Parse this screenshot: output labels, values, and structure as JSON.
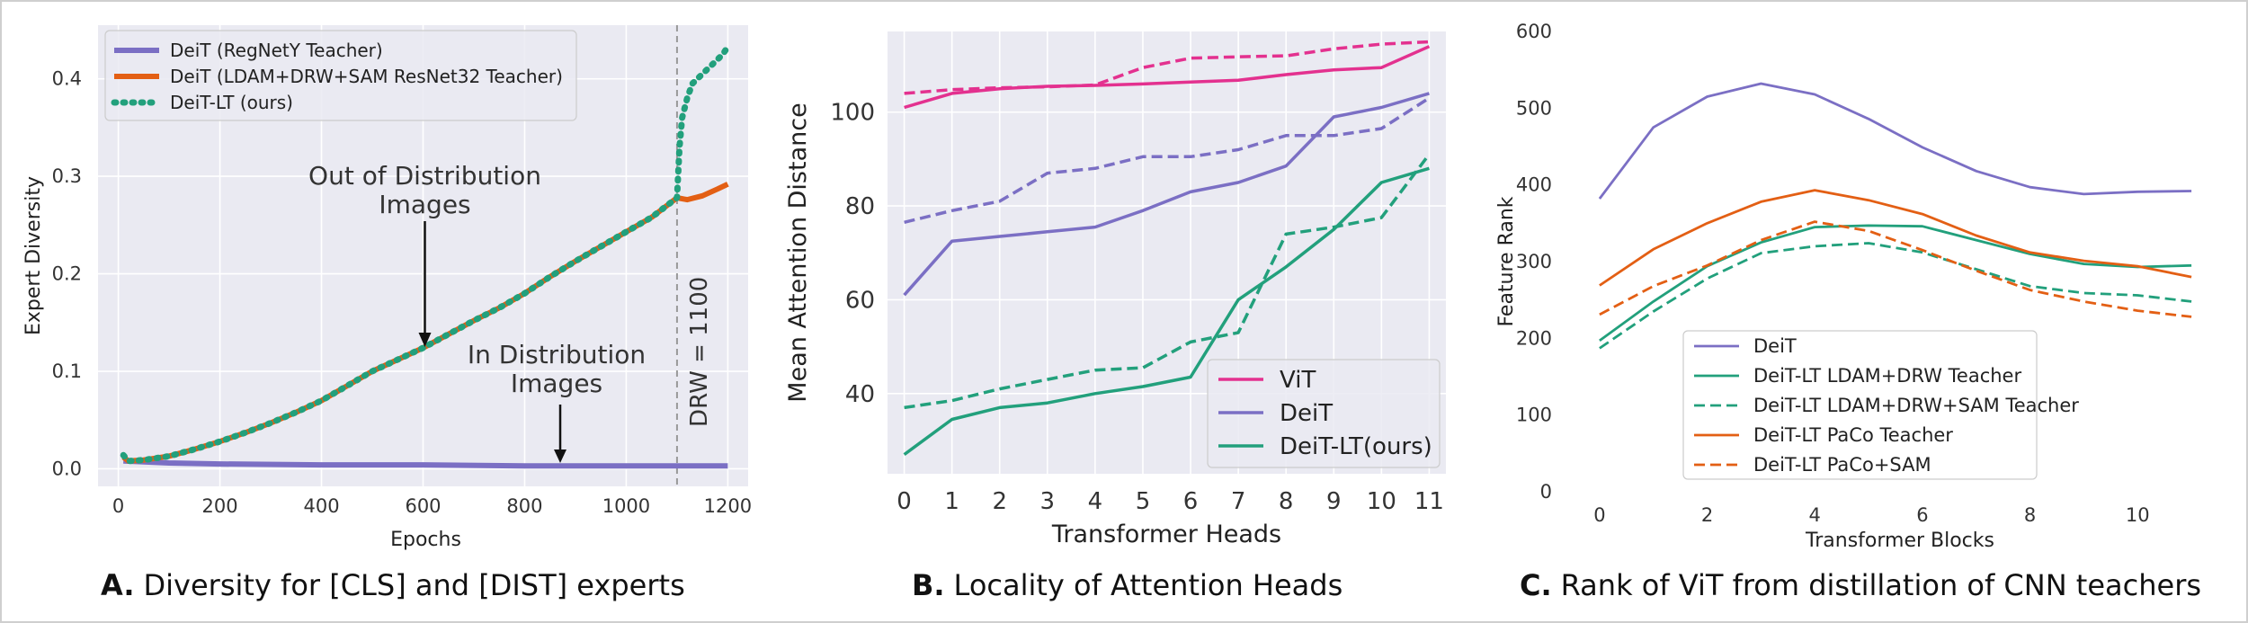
{
  "colors": {
    "purple": "#7b6fc4",
    "orange": "#e35f14",
    "teal": "#22a07c",
    "pink": "#e3318f",
    "grid": "#ffffff",
    "plot_bg": "#eaeaf2",
    "annot": "#333333"
  },
  "captions": [
    {
      "letter": "A.",
      "text": "Diversity for [CLS] and [DIST] experts"
    },
    {
      "letter": "B.",
      "text": "Locality of Attention Heads"
    },
    {
      "letter": "C.",
      "text": "Rank of ViT from distillation of CNN teachers"
    }
  ],
  "chart_data": [
    {
      "type": "line",
      "xlabel": "Epochs",
      "ylabel": "Expert Diversity",
      "xlim": [
        -40,
        1240
      ],
      "ylim": [
        -0.018,
        0.455
      ],
      "xticks": [
        0,
        200,
        400,
        600,
        800,
        1000,
        1200
      ],
      "yticks": [
        0.0,
        0.1,
        0.2,
        0.3,
        0.4
      ],
      "ytick_labels": [
        "0.0",
        "0.1",
        "0.2",
        "0.3",
        "0.4"
      ],
      "grid": true,
      "legend": "top-left",
      "series": [
        {
          "name": "DeiT (RegNetY Teacher)",
          "color": "purple",
          "dash": "solid",
          "width": 6,
          "x": [
            10,
            100,
            200,
            400,
            600,
            800,
            1000,
            1200
          ],
          "y": [
            0.008,
            0.006,
            0.005,
            0.004,
            0.004,
            0.003,
            0.003,
            0.003
          ]
        },
        {
          "name": "DeiT (LDAM+DRW+SAM ResNet32 Teacher)",
          "color": "orange",
          "dash": "solid",
          "width": 6,
          "x": [
            10,
            20,
            50,
            100,
            150,
            200,
            250,
            300,
            350,
            400,
            450,
            500,
            550,
            600,
            650,
            700,
            750,
            800,
            850,
            900,
            950,
            1000,
            1050,
            1100,
            1120,
            1150,
            1180,
            1200
          ],
          "y": [
            0.012,
            0.008,
            0.009,
            0.013,
            0.02,
            0.028,
            0.037,
            0.047,
            0.058,
            0.07,
            0.085,
            0.1,
            0.112,
            0.124,
            0.138,
            0.152,
            0.165,
            0.18,
            0.197,
            0.213,
            0.228,
            0.243,
            0.258,
            0.278,
            0.276,
            0.28,
            0.287,
            0.292
          ]
        },
        {
          "name": "DeiT-LT (ours)",
          "color": "teal",
          "dash": "dot",
          "width": 7,
          "x": [
            10,
            20,
            50,
            100,
            150,
            200,
            250,
            300,
            350,
            400,
            450,
            500,
            550,
            600,
            650,
            700,
            750,
            800,
            850,
            900,
            950,
            1000,
            1050,
            1100,
            1105,
            1110,
            1120,
            1130,
            1150,
            1170,
            1190,
            1200
          ],
          "y": [
            0.014,
            0.008,
            0.009,
            0.013,
            0.02,
            0.028,
            0.037,
            0.047,
            0.058,
            0.07,
            0.085,
            0.1,
            0.112,
            0.124,
            0.138,
            0.152,
            0.165,
            0.18,
            0.197,
            0.213,
            0.228,
            0.243,
            0.258,
            0.278,
            0.33,
            0.36,
            0.38,
            0.395,
            0.405,
            0.415,
            0.425,
            0.433
          ]
        }
      ],
      "annotations": [
        {
          "text": "Out of Distribution\nImages",
          "x": 600,
          "y": 0.12
        },
        {
          "text": "In Distribution\nImages",
          "x": 870,
          "y": 0.004
        }
      ],
      "vline": {
        "x": 1100,
        "label": "DRW = 1100"
      }
    },
    {
      "type": "line",
      "xlabel": "Transformer Heads",
      "ylabel": "Mean Attention Distance",
      "categories": [
        "0",
        "1",
        "2",
        "3",
        "4",
        "5",
        "6",
        "7",
        "8",
        "9",
        "10",
        "11"
      ],
      "xlim": [
        -0.35,
        11.35
      ],
      "ylim": [
        22.9,
        117.2
      ],
      "yticks": [
        40,
        60,
        80,
        100
      ],
      "grid": true,
      "legend": "bottom-right",
      "series": [
        {
          "name": "ViT",
          "color": "pink",
          "dash": "solid",
          "width": 3.5,
          "legend": true,
          "values": [
            101,
            104,
            105,
            105.5,
            105.7,
            106,
            106.4,
            106.8,
            108,
            109,
            109.5,
            114
          ]
        },
        {
          "color": "pink",
          "dash": "dashed",
          "width": 3.5,
          "legend": false,
          "values": [
            104,
            104.8,
            105.2,
            105.4,
            105.8,
            109.5,
            111.5,
            111.8,
            112,
            113.5,
            114.5,
            115
          ]
        },
        {
          "name": "DeiT",
          "color": "purple",
          "dash": "solid",
          "width": 3.5,
          "legend": true,
          "values": [
            61,
            72.5,
            73.5,
            74.5,
            75.5,
            79,
            83,
            85,
            88.5,
            99,
            101,
            104
          ]
        },
        {
          "color": "purple",
          "dash": "dashed",
          "width": 3.5,
          "legend": false,
          "values": [
            76.5,
            79,
            81,
            87,
            88,
            90.5,
            90.5,
            92,
            95,
            95,
            96.5,
            103
          ]
        },
        {
          "name": "DeiT-LT(ours)",
          "color": "teal",
          "dash": "solid",
          "width": 3.5,
          "legend": true,
          "values": [
            27,
            34.5,
            37,
            38,
            40,
            41.5,
            43.5,
            60,
            67,
            75,
            85,
            88
          ]
        },
        {
          "color": "teal",
          "dash": "dashed",
          "width": 3.5,
          "legend": false,
          "values": [
            37,
            38.5,
            41,
            43,
            45,
            45.5,
            51,
            53,
            74,
            75.5,
            77.5,
            91
          ]
        }
      ]
    },
    {
      "type": "line",
      "xlabel": "Transformer Blocks",
      "ylabel": "Feature Rank",
      "xlim": [
        -0.55,
        11.55
      ],
      "ylim": [
        0,
        600
      ],
      "xticks": [
        0,
        2,
        4,
        6,
        8,
        10
      ],
      "yticks": [
        0,
        100,
        200,
        300,
        400,
        500,
        600
      ],
      "grid": false,
      "legend": "bottom-center",
      "series": [
        {
          "name": "DeiT",
          "color": "purple",
          "dash": "solid",
          "width": 2.8,
          "x": [
            0,
            1,
            2,
            3,
            4,
            5,
            6,
            7,
            8,
            9,
            10,
            11
          ],
          "y": [
            382,
            475,
            515,
            532,
            518,
            486,
            449,
            418,
            397,
            388,
            391,
            392
          ]
        },
        {
          "name": "DeiT-LT LDAM+DRW Teacher",
          "color": "teal",
          "dash": "solid",
          "width": 2.8,
          "x": [
            0,
            1,
            2,
            3,
            4,
            5,
            6,
            7,
            8,
            9,
            10,
            11
          ],
          "y": [
            197,
            248,
            294,
            325,
            345,
            347,
            346,
            328,
            310,
            297,
            293,
            295
          ]
        },
        {
          "name": "DeiT-LT LDAM+DRW+SAM Teacher",
          "color": "teal",
          "dash": "dashed",
          "width": 2.8,
          "x": [
            0,
            1,
            2,
            3,
            4,
            5,
            6,
            7,
            8,
            9,
            10,
            11
          ],
          "y": [
            187,
            235,
            278,
            311,
            320,
            324,
            312,
            290,
            268,
            259,
            256,
            248
          ]
        },
        {
          "name": "DeiT-LT PaCo Teacher",
          "color": "orange",
          "dash": "solid",
          "width": 2.8,
          "x": [
            0,
            1,
            2,
            3,
            4,
            5,
            6,
            7,
            8,
            9,
            10,
            11
          ],
          "y": [
            269,
            316,
            350,
            378,
            393,
            380,
            362,
            334,
            312,
            301,
            294,
            280
          ]
        },
        {
          "name": "DeiT-LT PaCo+SAM",
          "color": "orange",
          "dash": "dashed",
          "width": 2.8,
          "x": [
            0,
            1,
            2,
            3,
            4,
            5,
            6,
            7,
            8,
            9,
            10,
            11
          ],
          "y": [
            231,
            268,
            295,
            328,
            352,
            340,
            315,
            288,
            263,
            248,
            236,
            228
          ]
        }
      ]
    }
  ]
}
